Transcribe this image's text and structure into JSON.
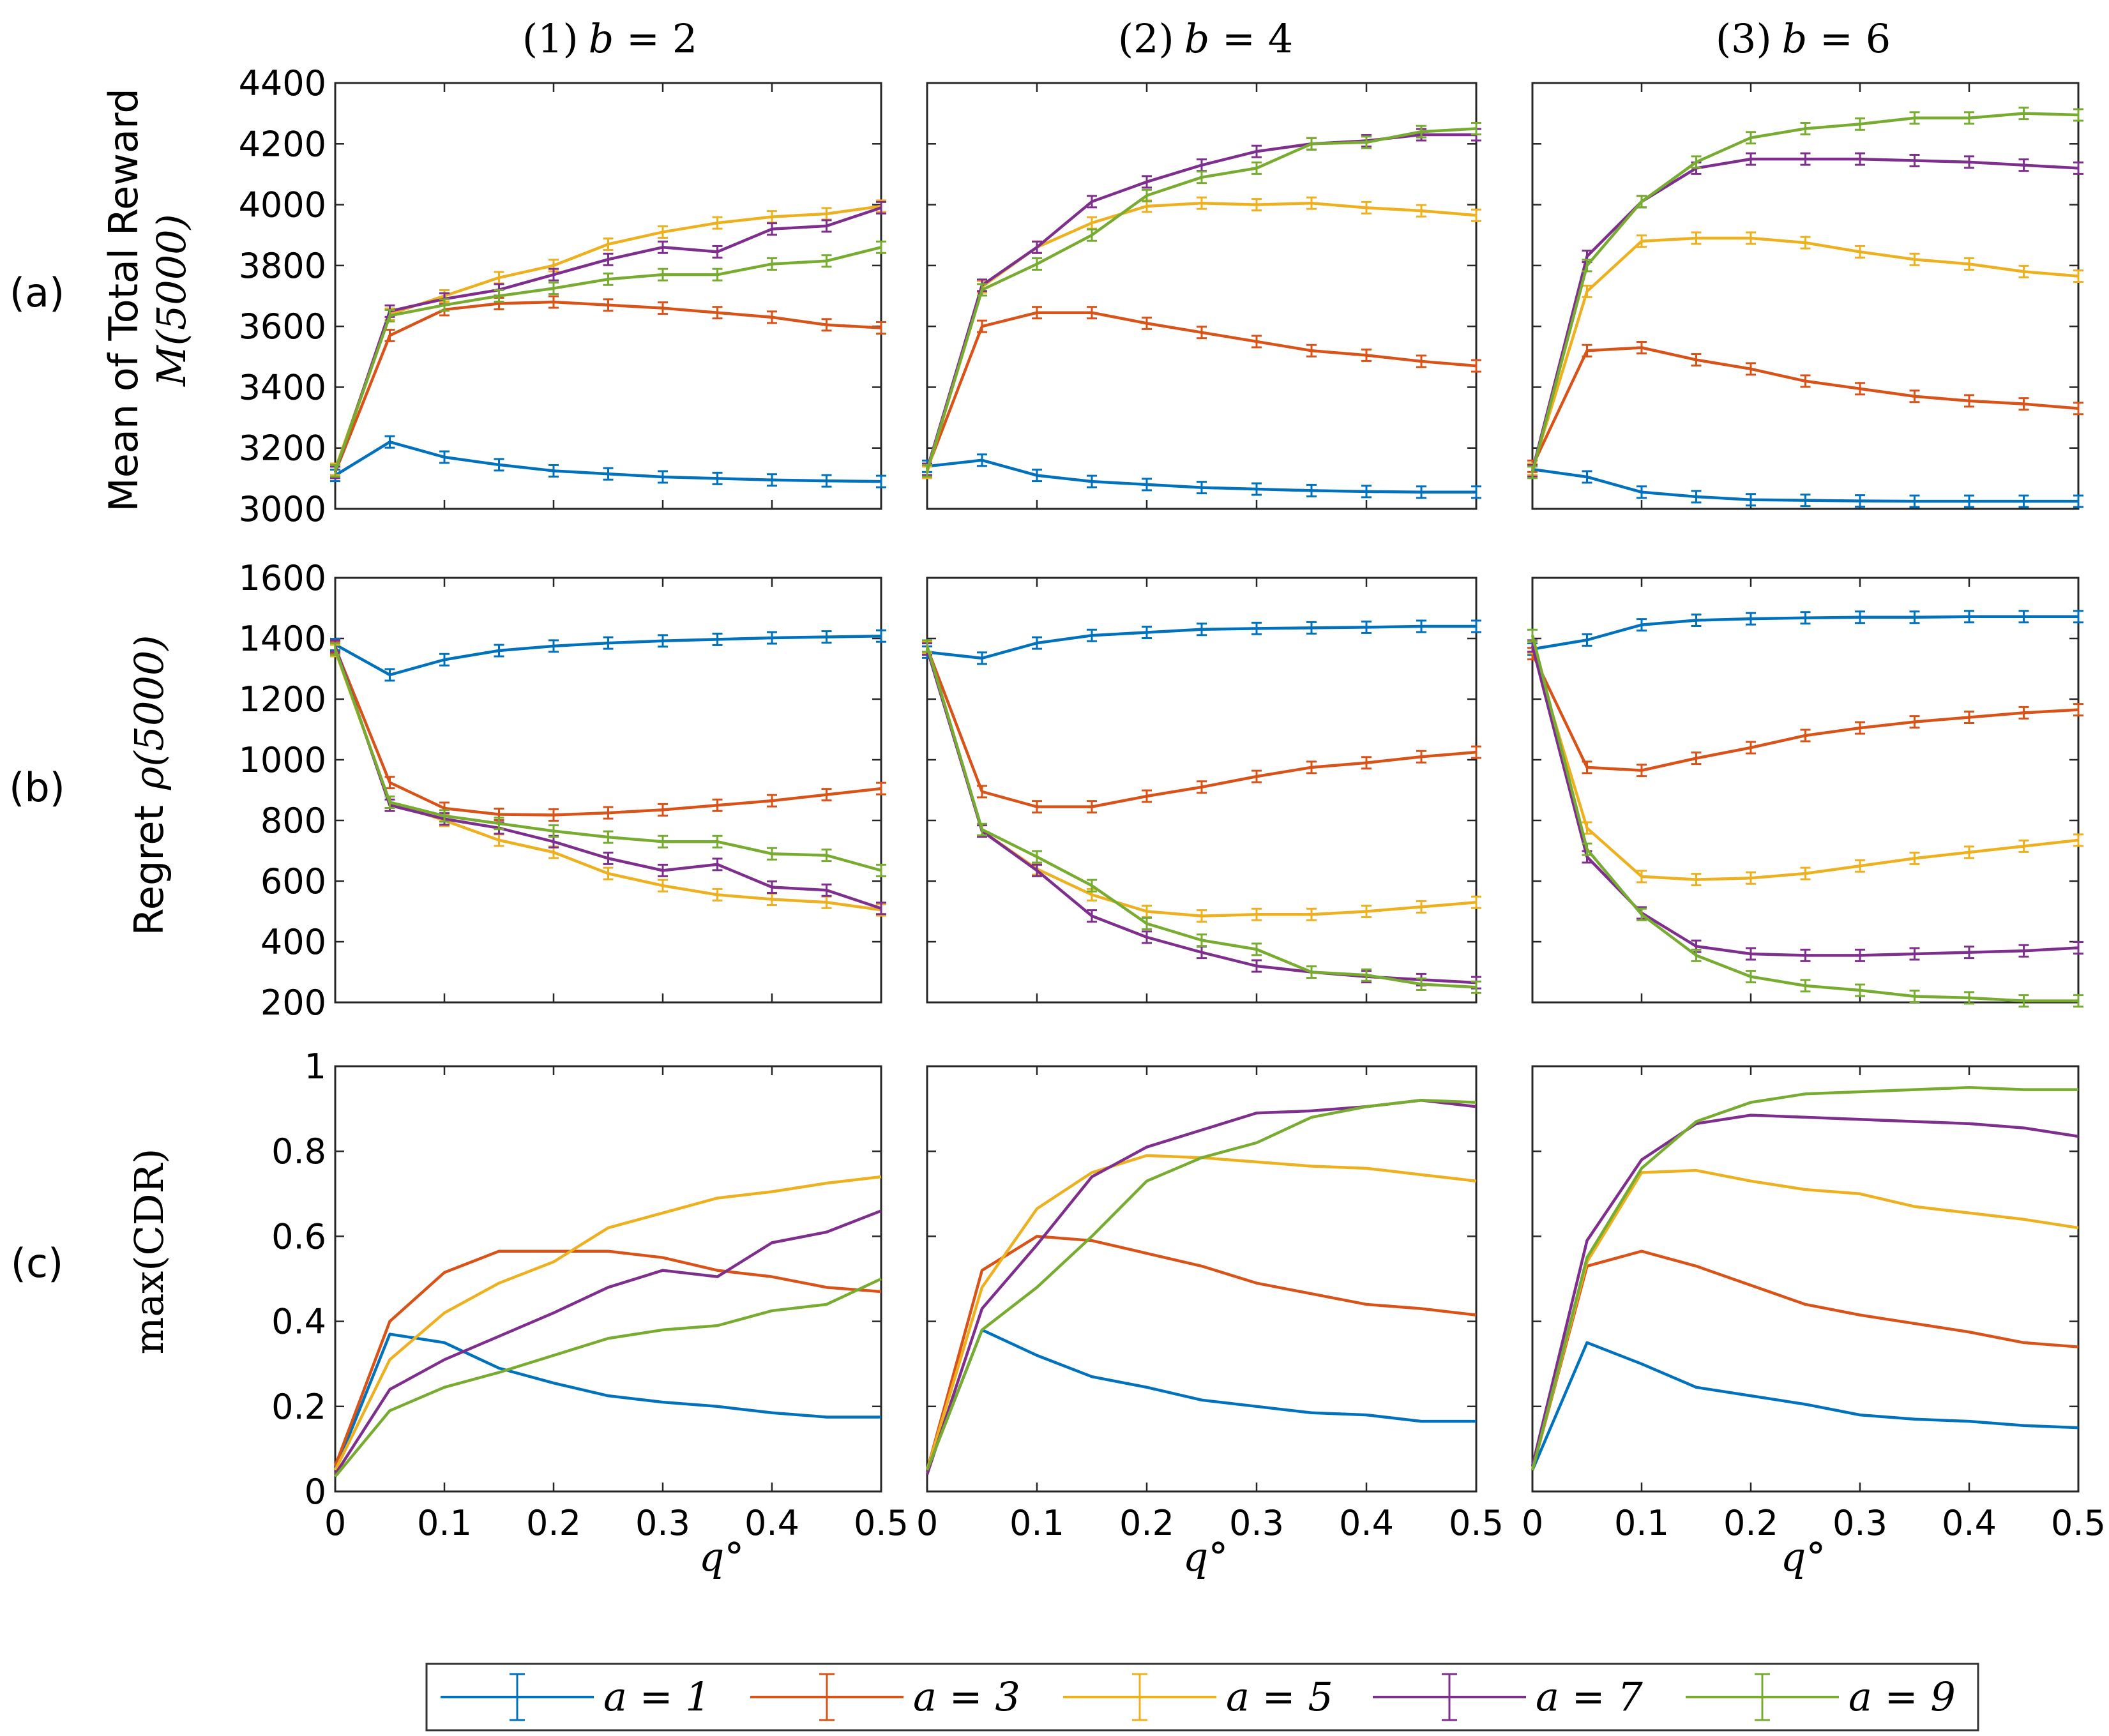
{
  "columns": [
    {
      "prefix": "(1)",
      "value": "2"
    },
    {
      "prefix": "(2)",
      "value": "4"
    },
    {
      "prefix": "(3)",
      "value": "6"
    }
  ],
  "column_var": "b",
  "rows": [
    {
      "tag": "(a)",
      "ylabel_line1": "Mean of Total Reward",
      "ylabel_line2": "M(5000)"
    },
    {
      "tag": "(b)",
      "ylabel_line1": "Regret",
      "ylabel_line2": "ρ(5000)"
    },
    {
      "tag": "(c)",
      "ylabel_line1": "max(CDR)",
      "ylabel_line2": ""
    }
  ],
  "xlabel": "q°",
  "legend": [
    "a = 1",
    "a = 3",
    "a = 5",
    "a = 7",
    "a = 9"
  ],
  "colors": [
    "#0072BD",
    "#D95319",
    "#EDB120",
    "#7E2F8E",
    "#77AC30"
  ],
  "chart_data": [
    {
      "type": "line",
      "title": "(1) b = 2",
      "row": "a",
      "col": 0,
      "xlabel": "",
      "ylabel": "Mean of Total Reward M(5000)",
      "ylim": [
        3000,
        4400
      ],
      "x": [
        0,
        0.05,
        0.1,
        0.15,
        0.2,
        0.25,
        0.3,
        0.35,
        0.4,
        0.45,
        0.5
      ],
      "yticks": [
        3000,
        3200,
        3400,
        3600,
        3800,
        4000,
        4200,
        4400
      ],
      "series": [
        {
          "name": "a = 1",
          "values": [
            3110,
            3220,
            3170,
            3145,
            3125,
            3115,
            3105,
            3100,
            3095,
            3092,
            3090
          ]
        },
        {
          "name": "a = 3",
          "values": [
            3120,
            3570,
            3655,
            3675,
            3680,
            3670,
            3660,
            3645,
            3630,
            3605,
            3595
          ]
        },
        {
          "name": "a = 5",
          "values": [
            3130,
            3640,
            3700,
            3760,
            3800,
            3870,
            3910,
            3940,
            3960,
            3970,
            3995
          ]
        },
        {
          "name": "a = 7",
          "values": [
            3120,
            3650,
            3690,
            3720,
            3770,
            3820,
            3860,
            3845,
            3920,
            3930,
            3990
          ]
        },
        {
          "name": "a = 9",
          "values": [
            3125,
            3635,
            3670,
            3700,
            3725,
            3755,
            3770,
            3770,
            3805,
            3815,
            3860
          ]
        }
      ]
    },
    {
      "type": "line",
      "title": "(2) b = 4",
      "row": "a",
      "col": 1,
      "xlabel": "",
      "ylabel": "",
      "ylim": [
        3000,
        4400
      ],
      "x": [
        0,
        0.05,
        0.1,
        0.15,
        0.2,
        0.25,
        0.3,
        0.35,
        0.4,
        0.45,
        0.5
      ],
      "yticks": [],
      "series": [
        {
          "name": "a = 1",
          "values": [
            3140,
            3160,
            3110,
            3090,
            3080,
            3070,
            3065,
            3060,
            3057,
            3055,
            3055
          ]
        },
        {
          "name": "a = 3",
          "values": [
            3130,
            3600,
            3645,
            3645,
            3610,
            3580,
            3550,
            3520,
            3505,
            3485,
            3470
          ]
        },
        {
          "name": "a = 5",
          "values": [
            3120,
            3730,
            3860,
            3940,
            3995,
            4005,
            4000,
            4005,
            3990,
            3980,
            3965
          ]
        },
        {
          "name": "a = 7",
          "values": [
            3130,
            3735,
            3860,
            4010,
            4075,
            4130,
            4175,
            4200,
            4210,
            4230,
            4230
          ]
        },
        {
          "name": "a = 9",
          "values": [
            3125,
            3720,
            3805,
            3900,
            4030,
            4090,
            4120,
            4200,
            4205,
            4240,
            4250
          ]
        }
      ]
    },
    {
      "type": "line",
      "title": "(3) b = 6",
      "row": "a",
      "col": 2,
      "xlabel": "",
      "ylabel": "",
      "ylim": [
        3000,
        4400
      ],
      "x": [
        0,
        0.05,
        0.1,
        0.15,
        0.2,
        0.25,
        0.3,
        0.35,
        0.4,
        0.45,
        0.5
      ],
      "yticks": [],
      "series": [
        {
          "name": "a = 1",
          "values": [
            3130,
            3105,
            3055,
            3040,
            3030,
            3028,
            3026,
            3025,
            3025,
            3025,
            3025
          ]
        },
        {
          "name": "a = 3",
          "values": [
            3140,
            3520,
            3530,
            3490,
            3460,
            3420,
            3395,
            3370,
            3355,
            3345,
            3330
          ]
        },
        {
          "name": "a = 5",
          "values": [
            3130,
            3715,
            3880,
            3890,
            3890,
            3875,
            3845,
            3820,
            3805,
            3780,
            3765
          ]
        },
        {
          "name": "a = 7",
          "values": [
            3125,
            3830,
            4010,
            4120,
            4150,
            4150,
            4150,
            4145,
            4140,
            4130,
            4120
          ]
        },
        {
          "name": "a = 9",
          "values": [
            3120,
            3800,
            4010,
            4140,
            4220,
            4250,
            4265,
            4285,
            4285,
            4300,
            4295
          ]
        }
      ]
    },
    {
      "type": "line",
      "title": "",
      "row": "b",
      "col": 0,
      "xlabel": "",
      "ylabel": "Regret ρ(5000)",
      "ylim": [
        200,
        1600
      ],
      "x": [
        0,
        0.05,
        0.1,
        0.15,
        0.2,
        0.25,
        0.3,
        0.35,
        0.4,
        0.45,
        0.5
      ],
      "yticks": [
        200,
        400,
        600,
        800,
        1000,
        1200,
        1400,
        1600
      ],
      "series": [
        {
          "name": "a = 1",
          "values": [
            1380,
            1280,
            1330,
            1360,
            1375,
            1385,
            1392,
            1397,
            1402,
            1405,
            1408
          ]
        },
        {
          "name": "a = 3",
          "values": [
            1370,
            925,
            840,
            820,
            818,
            825,
            835,
            850,
            865,
            885,
            905
          ]
        },
        {
          "name": "a = 5",
          "values": [
            1360,
            860,
            800,
            735,
            695,
            625,
            585,
            555,
            540,
            530,
            505
          ]
        },
        {
          "name": "a = 7",
          "values": [
            1375,
            850,
            805,
            775,
            730,
            675,
            635,
            655,
            580,
            570,
            510
          ]
        },
        {
          "name": "a = 9",
          "values": [
            1365,
            860,
            815,
            790,
            765,
            745,
            730,
            730,
            690,
            685,
            635
          ]
        }
      ]
    },
    {
      "type": "line",
      "title": "",
      "row": "b",
      "col": 1,
      "xlabel": "",
      "ylabel": "",
      "ylim": [
        200,
        1600
      ],
      "x": [
        0,
        0.05,
        0.1,
        0.15,
        0.2,
        0.25,
        0.3,
        0.35,
        0.4,
        0.45,
        0.5
      ],
      "yticks": [],
      "series": [
        {
          "name": "a = 1",
          "values": [
            1355,
            1335,
            1385,
            1410,
            1420,
            1430,
            1433,
            1435,
            1437,
            1440,
            1440
          ]
        },
        {
          "name": "a = 3",
          "values": [
            1370,
            895,
            845,
            845,
            880,
            910,
            945,
            975,
            990,
            1010,
            1025
          ]
        },
        {
          "name": "a = 5",
          "values": [
            1370,
            765,
            640,
            555,
            500,
            485,
            490,
            490,
            500,
            515,
            530
          ]
        },
        {
          "name": "a = 7",
          "values": [
            1365,
            765,
            635,
            485,
            415,
            365,
            320,
            300,
            285,
            275,
            265
          ]
        },
        {
          "name": "a = 9",
          "values": [
            1375,
            770,
            680,
            585,
            460,
            405,
            375,
            300,
            290,
            260,
            250
          ]
        }
      ]
    },
    {
      "type": "line",
      "title": "",
      "row": "b",
      "col": 2,
      "xlabel": "",
      "ylabel": "",
      "ylim": [
        200,
        1600
      ],
      "x": [
        0,
        0.05,
        0.1,
        0.15,
        0.2,
        0.25,
        0.3,
        0.35,
        0.4,
        0.45,
        0.5
      ],
      "yticks": [],
      "series": [
        {
          "name": "a = 1",
          "values": [
            1365,
            1395,
            1445,
            1460,
            1465,
            1468,
            1470,
            1470,
            1472,
            1472,
            1472
          ]
        },
        {
          "name": "a = 3",
          "values": [
            1350,
            975,
            965,
            1005,
            1040,
            1080,
            1105,
            1125,
            1140,
            1155,
            1165
          ]
        },
        {
          "name": "a = 5",
          "values": [
            1370,
            775,
            615,
            605,
            610,
            625,
            650,
            675,
            695,
            715,
            735
          ]
        },
        {
          "name": "a = 7",
          "values": [
            1375,
            680,
            495,
            385,
            360,
            355,
            355,
            360,
            365,
            370,
            380
          ]
        },
        {
          "name": "a = 9",
          "values": [
            1410,
            705,
            490,
            355,
            285,
            255,
            240,
            220,
            215,
            205,
            205
          ]
        }
      ]
    },
    {
      "type": "line",
      "title": "",
      "row": "c",
      "col": 0,
      "xlabel": "q°",
      "ylabel": "max(CDR)",
      "ylim": [
        0,
        1
      ],
      "x": [
        0,
        0.05,
        0.1,
        0.15,
        0.2,
        0.25,
        0.3,
        0.35,
        0.4,
        0.45,
        0.5
      ],
      "yticks": [
        0,
        0.2,
        0.4,
        0.6,
        0.8,
        1
      ],
      "xticks": [
        0,
        0.1,
        0.2,
        0.3,
        0.4,
        0.5
      ],
      "series": [
        {
          "name": "a = 1",
          "values": [
            0.05,
            0.37,
            0.35,
            0.29,
            0.255,
            0.225,
            0.21,
            0.2,
            0.185,
            0.175,
            0.175
          ]
        },
        {
          "name": "a = 3",
          "values": [
            0.06,
            0.4,
            0.515,
            0.565,
            0.565,
            0.565,
            0.55,
            0.52,
            0.505,
            0.48,
            0.47
          ]
        },
        {
          "name": "a = 5",
          "values": [
            0.05,
            0.31,
            0.42,
            0.49,
            0.54,
            0.62,
            0.655,
            0.69,
            0.705,
            0.725,
            0.74
          ]
        },
        {
          "name": "a = 7",
          "values": [
            0.04,
            0.24,
            0.31,
            0.365,
            0.42,
            0.48,
            0.52,
            0.505,
            0.585,
            0.61,
            0.66
          ]
        },
        {
          "name": "a = 9",
          "values": [
            0.035,
            0.19,
            0.245,
            0.28,
            0.32,
            0.36,
            0.38,
            0.39,
            0.425,
            0.44,
            0.5
          ]
        }
      ]
    },
    {
      "type": "line",
      "title": "",
      "row": "c",
      "col": 1,
      "xlabel": "q°",
      "ylabel": "",
      "ylim": [
        0,
        1
      ],
      "x": [
        0,
        0.05,
        0.1,
        0.15,
        0.2,
        0.25,
        0.3,
        0.35,
        0.4,
        0.45,
        0.5
      ],
      "yticks": [],
      "xticks": [
        0,
        0.1,
        0.2,
        0.3,
        0.4,
        0.5
      ],
      "series": [
        {
          "name": "a = 1",
          "values": [
            0.05,
            0.38,
            0.32,
            0.27,
            0.245,
            0.215,
            0.2,
            0.185,
            0.18,
            0.165,
            0.165
          ]
        },
        {
          "name": "a = 3",
          "values": [
            0.05,
            0.52,
            0.6,
            0.59,
            0.56,
            0.53,
            0.49,
            0.465,
            0.44,
            0.43,
            0.415
          ]
        },
        {
          "name": "a = 5",
          "values": [
            0.05,
            0.48,
            0.665,
            0.75,
            0.79,
            0.785,
            0.775,
            0.765,
            0.76,
            0.745,
            0.73
          ]
        },
        {
          "name": "a = 7",
          "values": [
            0.04,
            0.43,
            0.58,
            0.74,
            0.81,
            0.85,
            0.89,
            0.895,
            0.905,
            0.92,
            0.905
          ]
        },
        {
          "name": "a = 9",
          "values": [
            0.05,
            0.38,
            0.48,
            0.6,
            0.73,
            0.785,
            0.82,
            0.88,
            0.905,
            0.92,
            0.915
          ]
        }
      ]
    },
    {
      "type": "line",
      "title": "",
      "row": "c",
      "col": 2,
      "xlabel": "q°",
      "ylabel": "",
      "ylim": [
        0,
        1
      ],
      "x": [
        0,
        0.05,
        0.1,
        0.15,
        0.2,
        0.25,
        0.3,
        0.35,
        0.4,
        0.45,
        0.5
      ],
      "yticks": [],
      "xticks": [
        0,
        0.1,
        0.2,
        0.3,
        0.4,
        0.5
      ],
      "series": [
        {
          "name": "a = 1",
          "values": [
            0.05,
            0.35,
            0.3,
            0.245,
            0.225,
            0.205,
            0.18,
            0.17,
            0.165,
            0.155,
            0.15
          ]
        },
        {
          "name": "a = 3",
          "values": [
            0.05,
            0.53,
            0.565,
            0.53,
            0.485,
            0.44,
            0.415,
            0.395,
            0.375,
            0.35,
            0.34
          ]
        },
        {
          "name": "a = 5",
          "values": [
            0.05,
            0.54,
            0.75,
            0.755,
            0.73,
            0.71,
            0.7,
            0.67,
            0.655,
            0.64,
            0.62
          ]
        },
        {
          "name": "a = 7",
          "values": [
            0.06,
            0.59,
            0.78,
            0.865,
            0.885,
            0.88,
            0.875,
            0.87,
            0.865,
            0.855,
            0.835
          ]
        },
        {
          "name": "a = 9",
          "values": [
            0.05,
            0.55,
            0.76,
            0.87,
            0.915,
            0.935,
            0.94,
            0.945,
            0.95,
            0.945,
            0.945
          ]
        }
      ]
    }
  ]
}
